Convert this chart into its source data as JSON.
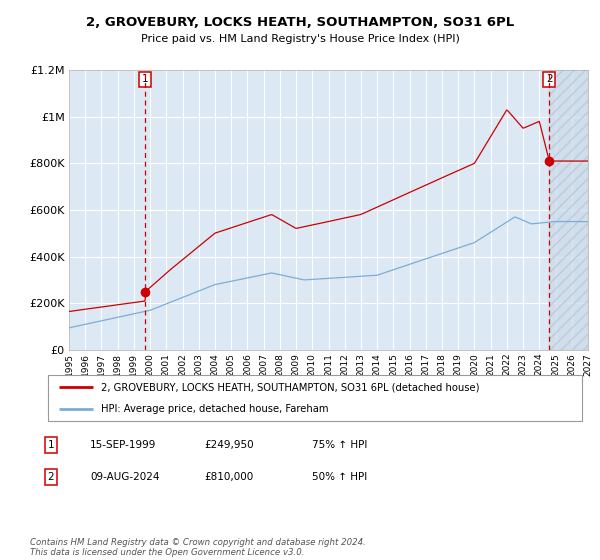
{
  "title": "2, GROVEBURY, LOCKS HEATH, SOUTHAMPTON, SO31 6PL",
  "subtitle": "Price paid vs. HM Land Registry's House Price Index (HPI)",
  "bg_color": "#dce9f5",
  "hatch_bg_color": "#ccd9e8",
  "red_line_color": "#cc0000",
  "blue_line_color": "#7aaed6",
  "grid_color": "#ffffff",
  "transaction1_year": 1999.71,
  "transaction1_price": 249950,
  "transaction2_year": 2024.61,
  "transaction2_price": 810000,
  "legend_line1": "2, GROVEBURY, LOCKS HEATH, SOUTHAMPTON, SO31 6PL (detached house)",
  "legend_line2": "HPI: Average price, detached house, Fareham",
  "xmin": 1995.0,
  "xmax": 2027.0,
  "ymin": 0,
  "ymax": 1200000,
  "ytick_values": [
    0,
    200000,
    400000,
    600000,
    800000,
    1000000,
    1200000
  ],
  "ytick_labels": [
    "£0",
    "£200K",
    "£400K",
    "£600K",
    "£800K",
    "£1M",
    "£1.2M"
  ]
}
